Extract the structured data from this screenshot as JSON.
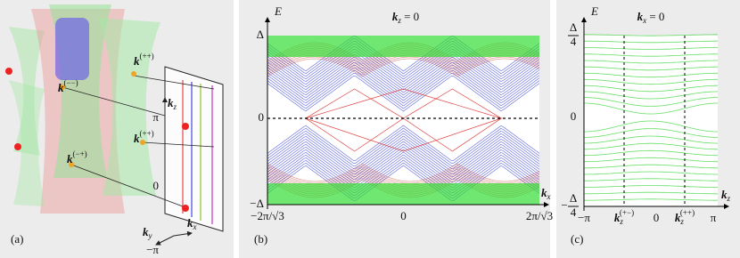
{
  "panel_a": {
    "label": "(a)",
    "points": [
      {
        "base": "k",
        "sup": "(++)"
      },
      {
        "base": "k",
        "sup": "(−−)"
      },
      {
        "base": "k",
        "sup": "(++)"
      },
      {
        "base": "k",
        "sup": "(−+)"
      }
    ],
    "axis_z": {
      "base": "k",
      "sub": "z"
    },
    "ticks_z": [
      "π",
      "0",
      "−π"
    ],
    "axis_y": {
      "base": "k",
      "sub": "y"
    },
    "axis_x": {
      "base": "k",
      "sub": "x"
    }
  },
  "panel_b": {
    "label": "(b)",
    "title": {
      "base": "k",
      "sub": "z",
      "rest": " = 0"
    },
    "y_label": "E",
    "x_label": {
      "base": "k",
      "sub": "x"
    },
    "yticks": [
      "Δ",
      "0",
      "−Δ"
    ],
    "xticks": [
      "−2π/√3",
      "0",
      "2π/√3"
    ]
  },
  "panel_c": {
    "label": "(c)",
    "title": {
      "base": "k",
      "sub": "x",
      "rest": " = 0"
    },
    "y_label": "E",
    "x_label": {
      "base": "k",
      "sub": "z"
    },
    "yticks": [
      {
        "num": "Δ",
        "den": "4"
      },
      "0",
      {
        "sign": "−",
        "num": "Δ",
        "den": "4"
      }
    ],
    "xticks": [
      "−π",
      {
        "base": "k",
        "sub": "z",
        "sup": "(+−)"
      },
      "0",
      {
        "base": "k",
        "sub": "z",
        "sup": "(++)"
      },
      "π"
    ]
  }
}
